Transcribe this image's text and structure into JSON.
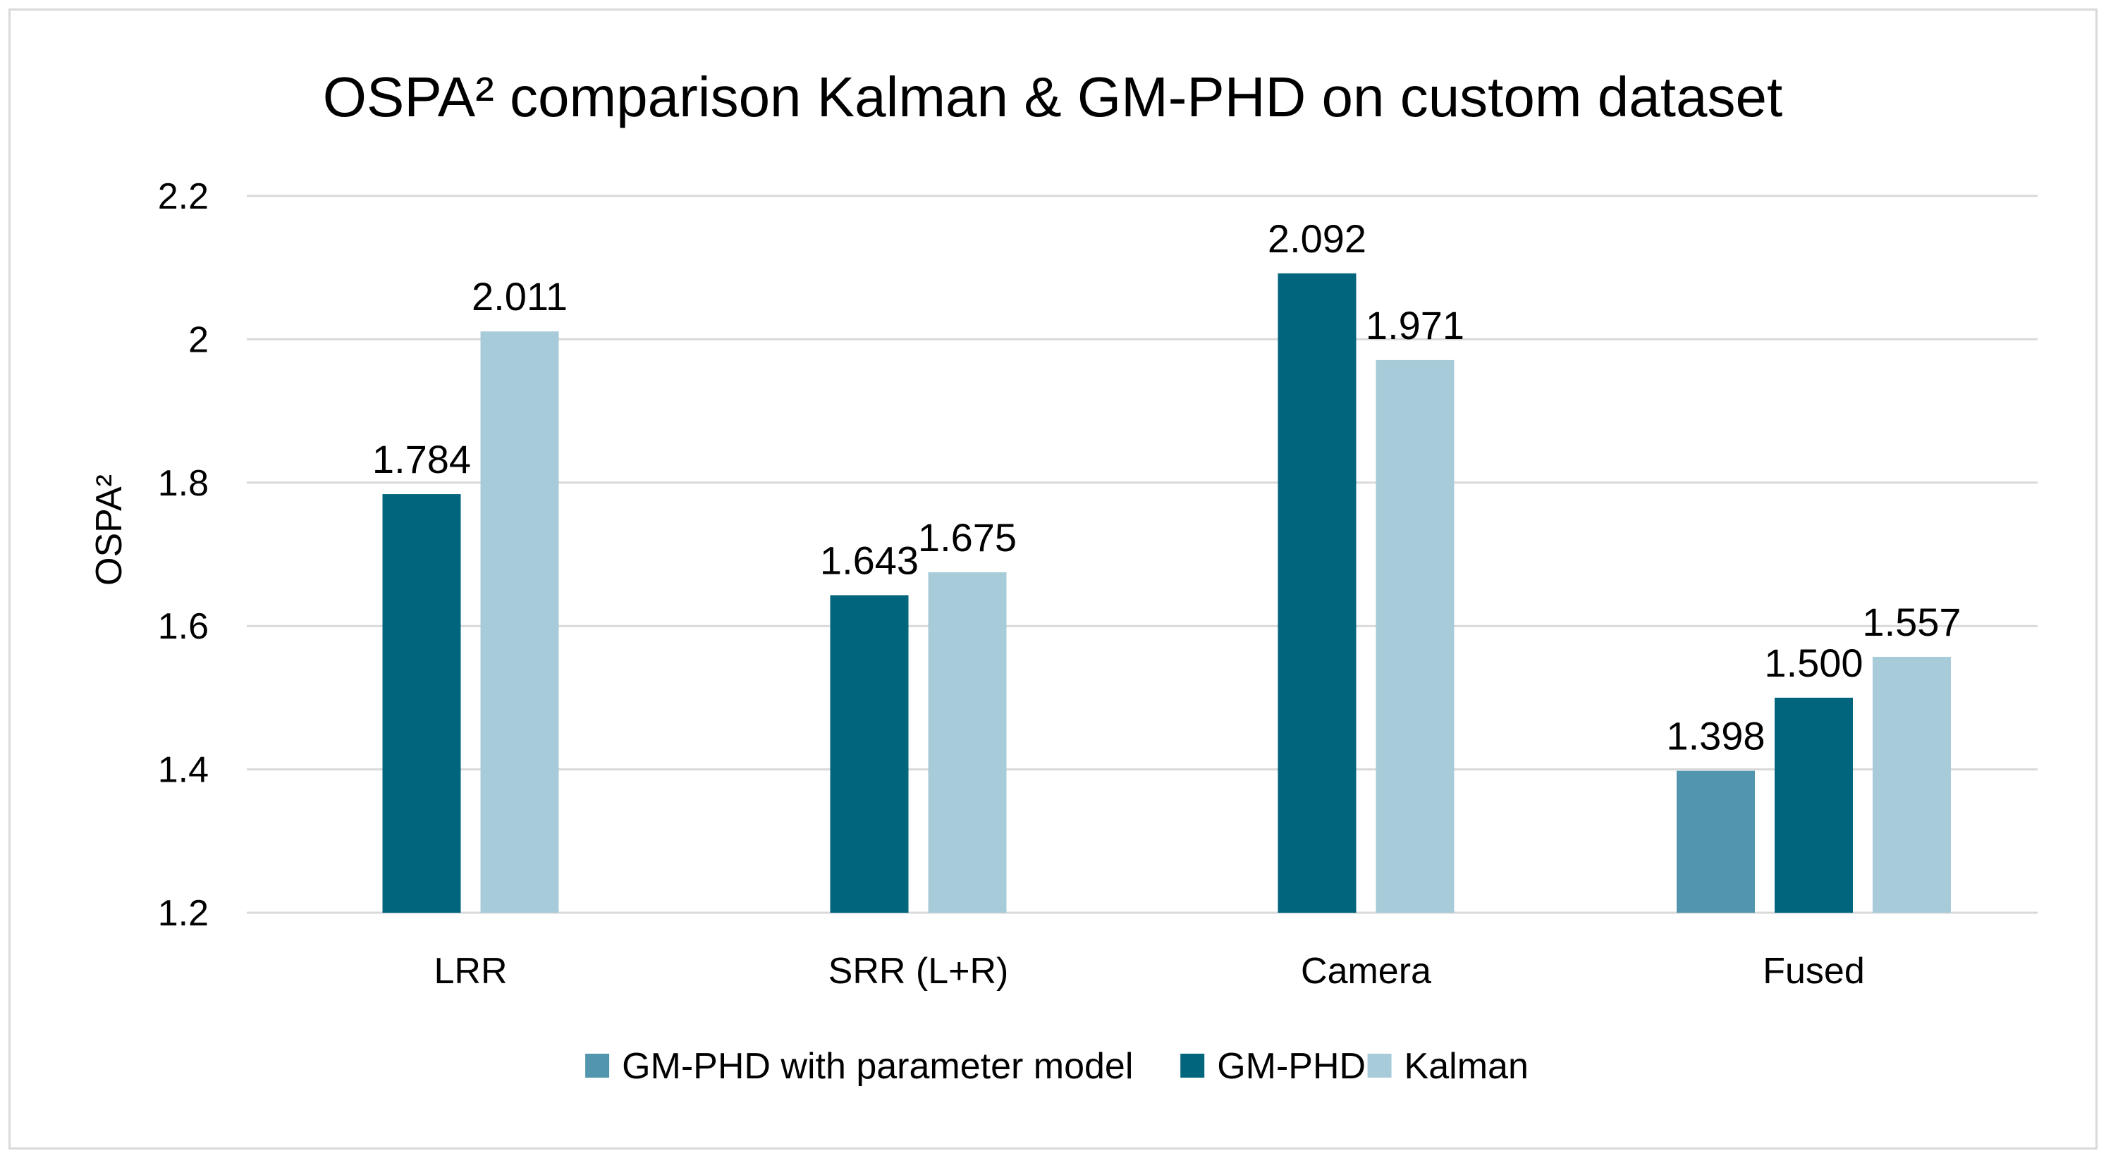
{
  "chart_data": {
    "type": "bar",
    "title": "OSPA² comparison Kalman & GM-PHD on custom dataset",
    "xlabel": "",
    "ylabel": "OSPA²",
    "ylim": [
      1.2,
      2.2
    ],
    "yticks": [
      1.2,
      1.4,
      1.6,
      1.8,
      2,
      2.2
    ],
    "ytick_labels": [
      "1.2",
      "1.4",
      "1.6",
      "1.8",
      "2",
      "2.2"
    ],
    "grid": true,
    "legend_position": "bottom",
    "categories": [
      "LRR",
      "SRR (L+R)",
      "Camera",
      "Fused"
    ],
    "series": [
      {
        "name": "GM-PHD with parameter model",
        "color": "#5195ae",
        "values": [
          null,
          null,
          null,
          1.398
        ],
        "labels": [
          "",
          "",
          "",
          "1.398"
        ]
      },
      {
        "name": "GM-PHD",
        "color": "#00657d",
        "values": [
          1.784,
          1.643,
          2.092,
          1.5
        ],
        "labels": [
          "1.784",
          "1.643",
          "2.092",
          "1.500"
        ]
      },
      {
        "name": "Kalman",
        "color": "#a8cbd9",
        "values": [
          2.011,
          1.675,
          1.971,
          1.557
        ],
        "labels": [
          "2.011",
          "1.675",
          "1.971",
          "1.557"
        ]
      }
    ]
  }
}
